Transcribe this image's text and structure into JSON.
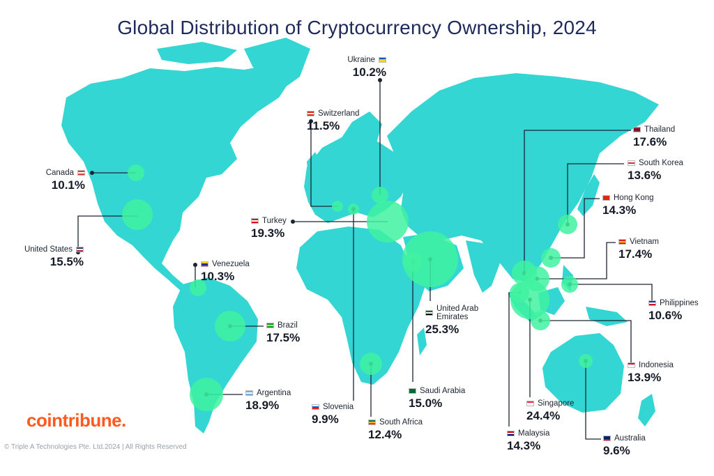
{
  "title": "Global Distribution of Cryptocurrency Ownership, 2024",
  "colors": {
    "land": "#33d6d3",
    "bubble": "#3ff2a0",
    "line": "#1c2331",
    "title": "#1f2a5c",
    "logo": "#ff5a1f"
  },
  "countries": [
    {
      "id": "canada",
      "name": "Canada",
      "value": "10.1%",
      "flag": [
        "#e03a3a",
        "#ffffff",
        "#e03a3a"
      ]
    },
    {
      "id": "united-states",
      "name": "United States",
      "value": "15.5%",
      "flag": [
        "#3c3b6e",
        "#ffffff",
        "#b22234"
      ]
    },
    {
      "id": "venezuela",
      "name": "Venezuela",
      "value": "10.3%",
      "flag": [
        "#f7d117",
        "#0033a0",
        "#cf142b"
      ]
    },
    {
      "id": "brazil",
      "name": "Brazil",
      "value": "17.5%",
      "flag": [
        "#009c3b",
        "#ffdf00",
        "#009c3b"
      ]
    },
    {
      "id": "argentina",
      "name": "Argentina",
      "value": "18.9%",
      "flag": [
        "#74acdf",
        "#ffffff",
        "#74acdf"
      ]
    },
    {
      "id": "ukraine",
      "name": "Ukraine",
      "value": "10.2%",
      "flag": [
        "#0057b7",
        "#ffd700",
        "#ffd700"
      ]
    },
    {
      "id": "switzerland",
      "name": "Switzerland",
      "value": "11.5%",
      "flag": [
        "#d52b1e",
        "#ffffff",
        "#d52b1e"
      ]
    },
    {
      "id": "turkey",
      "name": "Turkey",
      "value": "19.3%",
      "flag": [
        "#e30a17",
        "#ffffff",
        "#e30a17"
      ]
    },
    {
      "id": "slovenia",
      "name": "Slovenia",
      "value": "9.9%",
      "flag": [
        "#ffffff",
        "#005ce5",
        "#ed1c24"
      ]
    },
    {
      "id": "south-africa",
      "name": "South Africa",
      "value": "12.4%",
      "flag": [
        "#007749",
        "#ffb81c",
        "#de3831"
      ]
    },
    {
      "id": "saudi-arabia",
      "name": "Saudi Arabia",
      "value": "15.0%",
      "flag": [
        "#006c35",
        "#006c35",
        "#006c35"
      ]
    },
    {
      "id": "united-arab-emirates",
      "name": "United Arab Emirates",
      "name_lines": [
        "United Arab",
        "Emirates"
      ],
      "value": "25.3%",
      "flag": [
        "#00732f",
        "#ffffff",
        "#000000"
      ]
    },
    {
      "id": "thailand",
      "name": "Thailand",
      "value": "17.6%",
      "flag": [
        "#a51931",
        "#2d2a4a",
        "#a51931"
      ]
    },
    {
      "id": "south-korea",
      "name": "South Korea",
      "value": "13.6%",
      "flag": [
        "#ffffff",
        "#cd2e3a",
        "#ffffff"
      ]
    },
    {
      "id": "hong-kong",
      "name": "Hong Kong",
      "value": "14.3%",
      "flag": [
        "#de2910",
        "#de2910",
        "#de2910"
      ]
    },
    {
      "id": "vietnam",
      "name": "Vietnam",
      "value": "17.4%",
      "flag": [
        "#da251d",
        "#ffcd00",
        "#da251d"
      ]
    },
    {
      "id": "philippines",
      "name": "Philippines",
      "value": "10.6%",
      "flag": [
        "#0038a8",
        "#ffffff",
        "#ce1126"
      ]
    },
    {
      "id": "indonesia",
      "name": "Indonesia",
      "value": "13.9%",
      "flag": [
        "#ce1126",
        "#ffffff",
        "#ffffff"
      ]
    },
    {
      "id": "singapore",
      "name": "Singapore",
      "value": "24.4%",
      "flag": [
        "#ef3340",
        "#ffffff",
        "#ffffff"
      ]
    },
    {
      "id": "malaysia",
      "name": "Malaysia",
      "value": "14.3%",
      "flag": [
        "#cc0001",
        "#ffffff",
        "#010066"
      ]
    },
    {
      "id": "australia",
      "name": "Australia",
      "value": "9.6%",
      "flag": [
        "#012169",
        "#012169",
        "#e4002b"
      ]
    }
  ],
  "logo": "cointribune.",
  "copyright": "© Triple A Technologies Pte. Ltd.2024 | All Rights Reserved"
}
